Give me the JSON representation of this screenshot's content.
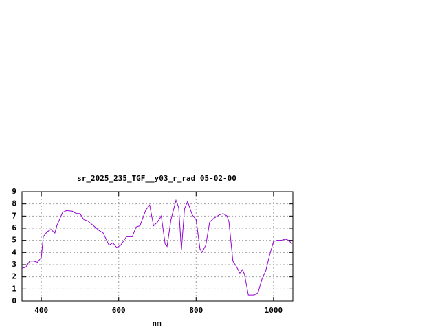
{
  "chart_data": {
    "type": "line",
    "title": "sr_2025_235_TGF__y03_r_rad 05-02-00",
    "x_label": "nm",
    "x": [
      350,
      360,
      370,
      380,
      390,
      400,
      405,
      415,
      425,
      435,
      440,
      455,
      465,
      480,
      490,
      500,
      510,
      520,
      535,
      550,
      560,
      575,
      585,
      595,
      605,
      620,
      635,
      645,
      655,
      670,
      680,
      690,
      700,
      710,
      720,
      725,
      735,
      748,
      755,
      762,
      770,
      778,
      790,
      800,
      810,
      815,
      825,
      835,
      845,
      860,
      870,
      880,
      885,
      895,
      905,
      913,
      920,
      925,
      935,
      950,
      960,
      970,
      980,
      990,
      1000,
      1010,
      1020,
      1030,
      1040,
      1047
    ],
    "series": [
      {
        "color": "#9400d3",
        "values": [
          2.7,
          2.8,
          3.3,
          3.3,
          3.2,
          3.6,
          5.3,
          5.7,
          5.9,
          5.6,
          6.2,
          7.3,
          7.45,
          7.4,
          7.2,
          7.2,
          6.7,
          6.6,
          6.2,
          5.8,
          5.6,
          4.6,
          4.8,
          4.4,
          4.6,
          5.3,
          5.3,
          6.1,
          6.2,
          7.5,
          7.9,
          6.2,
          6.5,
          7.0,
          4.7,
          4.5,
          6.7,
          8.3,
          7.7,
          4.2,
          7.6,
          8.2,
          7.1,
          6.7,
          4.3,
          4.0,
          4.6,
          6.5,
          6.8,
          7.1,
          7.2,
          7.0,
          6.5,
          3.3,
          2.8,
          2.3,
          2.6,
          2.2,
          0.5,
          0.5,
          0.7,
          1.8,
          2.5,
          3.8,
          4.9,
          5.0,
          5.0,
          5.1,
          5.0,
          4.7
        ]
      }
    ],
    "xlim": [
      350,
      1050
    ],
    "ylim": [
      0,
      9
    ],
    "xticks": [
      400,
      600,
      800,
      1000
    ],
    "yticks": [
      0,
      1,
      2,
      3,
      4,
      5,
      6,
      7,
      8,
      9
    ],
    "grid": true
  }
}
